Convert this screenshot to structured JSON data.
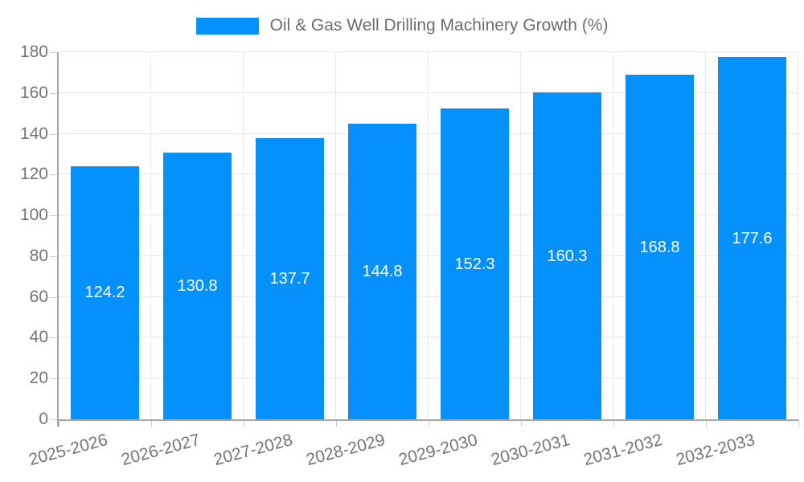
{
  "legend": {
    "label": "Oil & Gas Well Drilling Machinery Growth (%)"
  },
  "chart_data": {
    "type": "bar",
    "title": "Oil & Gas Well Drilling Machinery Growth (%)",
    "legend_entries": [
      "Oil & Gas Well Drilling Machinery Growth (%)"
    ],
    "legend_position": "top-center",
    "categories": [
      "2025-2026",
      "2026-2027",
      "2027-2028",
      "2028-2029",
      "2029-2030",
      "2030-2031",
      "2031-2032",
      "2032-2033"
    ],
    "series": [
      {
        "name": "Oil & Gas Well Drilling Machinery Growth (%)",
        "values": [
          124.2,
          130.8,
          137.7,
          144.8,
          152.3,
          160.3,
          168.8,
          177.6
        ]
      }
    ],
    "value_label_decimals": 1,
    "xlabel": "",
    "ylabel": "",
    "ylim": [
      0,
      180
    ],
    "yticks": [
      0,
      20,
      40,
      60,
      80,
      100,
      120,
      140,
      160,
      180
    ],
    "grid": true,
    "x_label_rotation_deg": 15,
    "colors": {
      "bar": "#0591fc",
      "grid": "#e8e8e8",
      "axis": "#a6a6a6",
      "tick": "#c9c9c9",
      "axis_label": "#757575",
      "bar_label": "#ffffff",
      "legend_text": "#6e6e6e",
      "background": "#ffffff"
    }
  }
}
